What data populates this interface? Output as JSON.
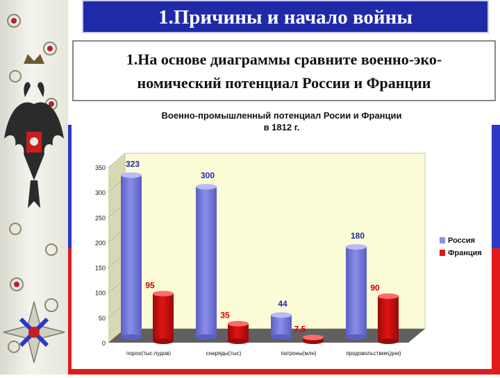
{
  "slide": {
    "title": "1.Причины и начало войны",
    "task_line1": "1.На основе диаграммы сравните военно-эко-",
    "task_line2": "номический потенциал России и Франции"
  },
  "colors": {
    "title_bg": "#1f2aa8",
    "flag_blue": "#2b38c8",
    "flag_red": "#e01b1b",
    "series_russia": "#8a8ee8",
    "series_france": "#e01414",
    "plot_bg": "#fbfbd6"
  },
  "icons": [
    "imperial-eagle-icon",
    "order-star-icon"
  ],
  "chart_data": {
    "type": "bar",
    "title_line1": "Военно-промышленный потенциал Росии и Франции",
    "title_line2": "в 1812 г.",
    "categories": [
      "порох(тыс.пудов)",
      "снаряды(тыс)",
      "патроны(млн)",
      "продовольствие(дни)"
    ],
    "series": [
      {
        "name": "Россия",
        "values": [
          323,
          300,
          44,
          180
        ],
        "labels": [
          "323",
          "300",
          "44",
          "180"
        ]
      },
      {
        "name": "Франция",
        "values": [
          95,
          35,
          7.5,
          90
        ],
        "labels": [
          "95",
          "35",
          "7,5",
          "90"
        ]
      }
    ],
    "ylim": [
      0,
      350
    ],
    "yticks": [
      "0",
      "50",
      "100",
      "150",
      "200",
      "250",
      "300",
      "350"
    ],
    "grid": false,
    "legend": "right",
    "style": "3d-cylinder"
  }
}
